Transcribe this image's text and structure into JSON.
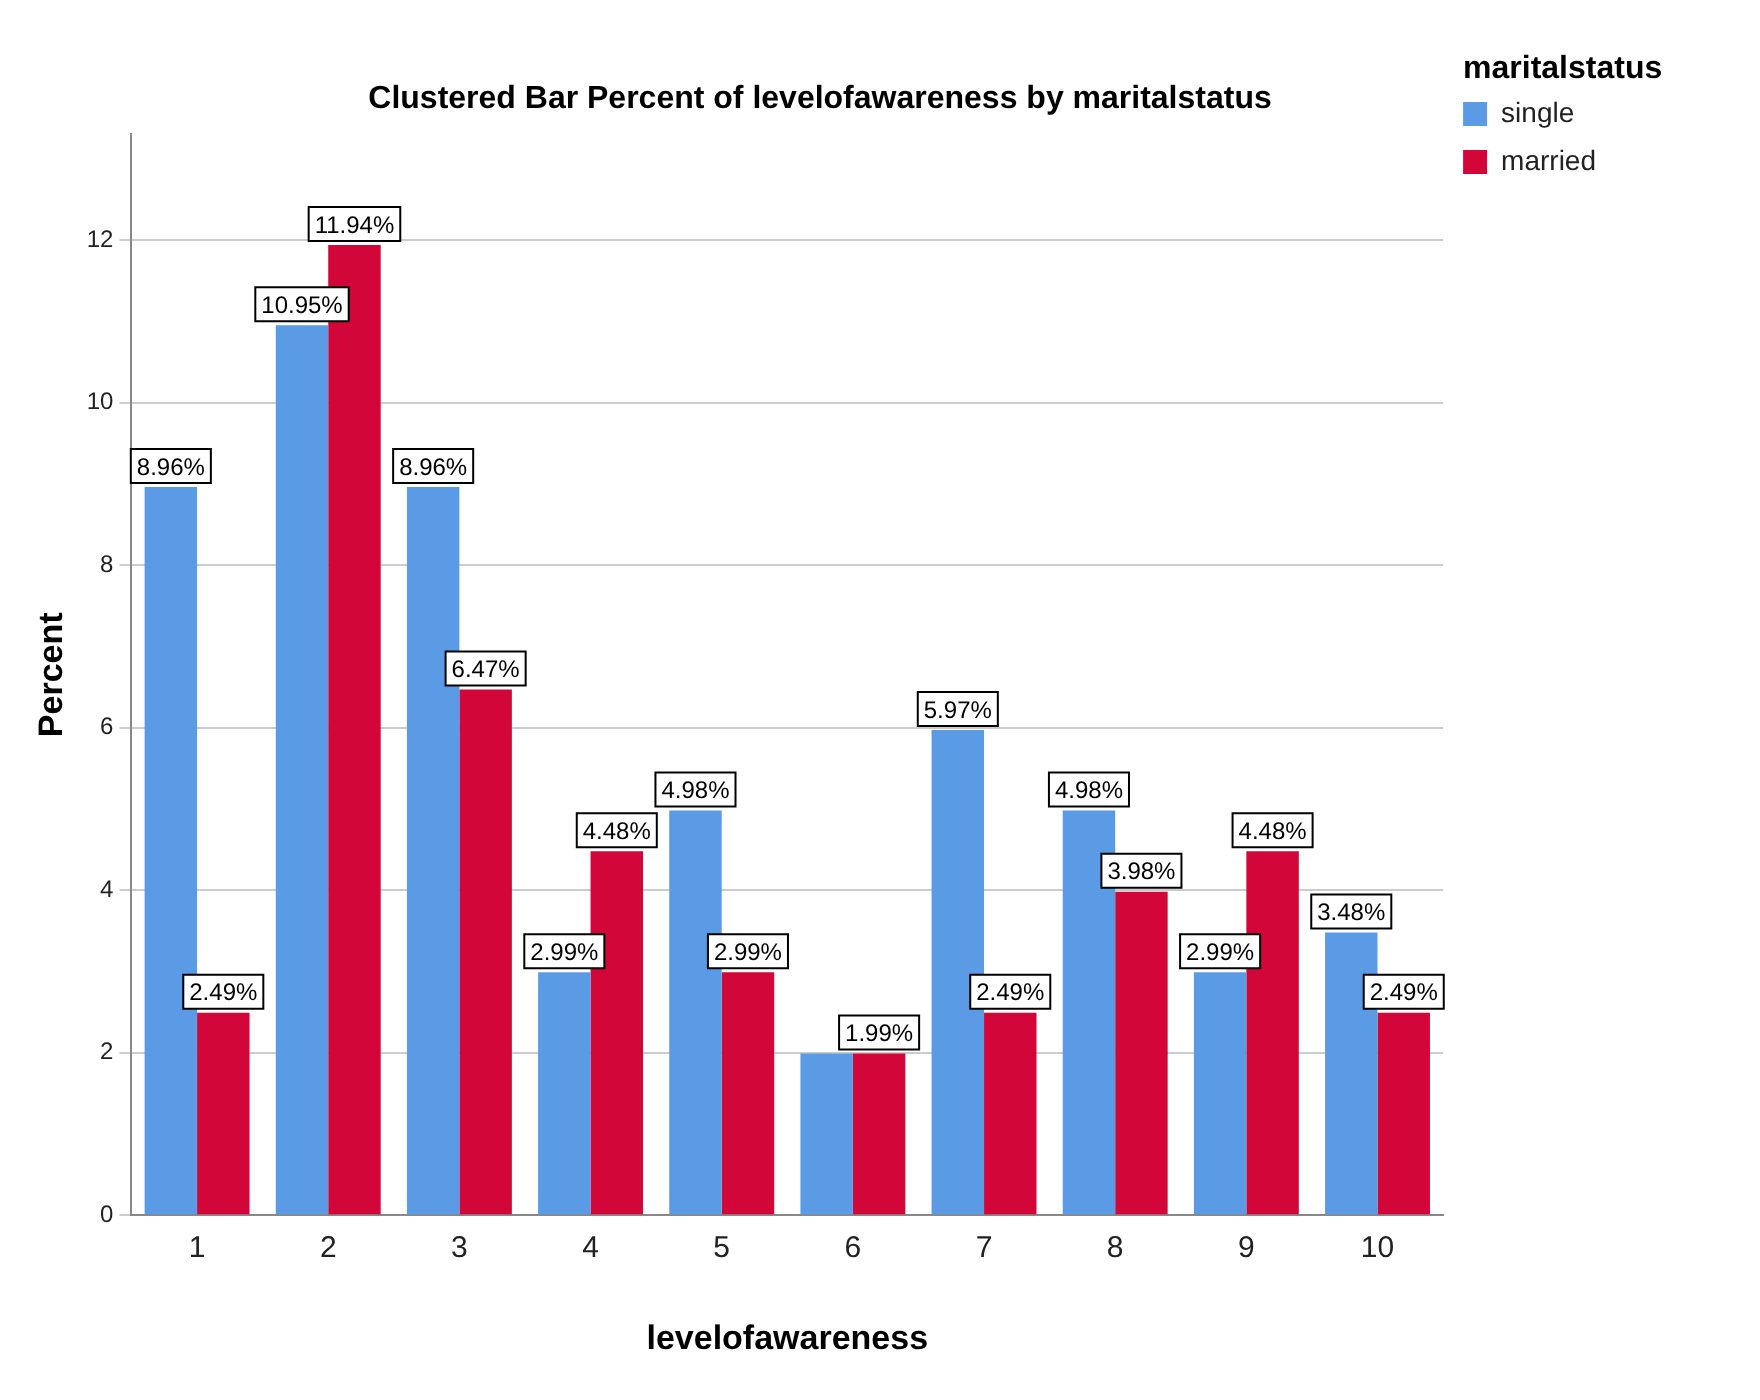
{
  "chart_data": {
    "type": "bar",
    "title": "Clustered Bar Percent of levelofawareness by maritalstatus",
    "xlabel": "levelofawareness",
    "ylabel": "Percent",
    "legend_title": "maritalstatus",
    "categories": [
      "1",
      "2",
      "3",
      "4",
      "5",
      "6",
      "7",
      "8",
      "9",
      "10"
    ],
    "series": [
      {
        "name": "single",
        "color": "#5b9be6",
        "values": [
          8.96,
          10.95,
          8.96,
          2.99,
          4.98,
          1.99,
          5.97,
          4.98,
          2.99,
          3.48
        ],
        "value_labels": [
          "8.96%",
          "10.95%",
          "8.96%",
          "2.99%",
          "4.98%",
          null,
          "5.97%",
          "4.98%",
          "2.99%",
          "3.48%"
        ]
      },
      {
        "name": "married",
        "color": "#d3063a",
        "values": [
          2.49,
          11.94,
          6.47,
          4.48,
          2.99,
          1.99,
          2.49,
          3.98,
          4.48,
          2.49
        ],
        "value_labels": [
          "2.49%",
          "11.94%",
          "6.47%",
          "4.48%",
          "2.99%",
          "1.99%",
          "2.49%",
          "3.98%",
          "4.48%",
          "2.49%"
        ]
      }
    ],
    "ylim": [
      0,
      13.3
    ],
    "yticks": [
      0,
      2,
      4,
      6,
      8,
      10,
      12
    ],
    "grid": "y",
    "legend": "top right"
  }
}
